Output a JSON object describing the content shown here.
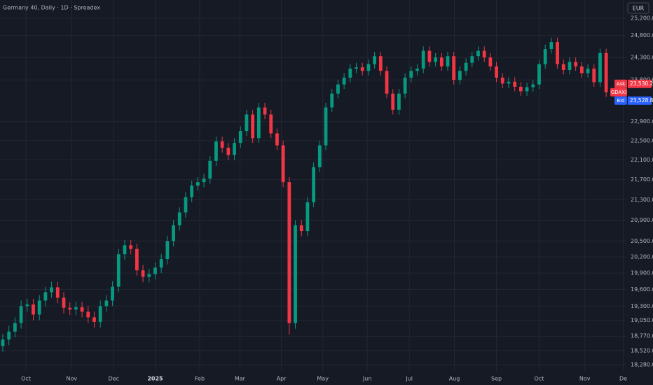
{
  "chart_data": {
    "type": "candlestick",
    "title": "Germany 40, Daily · 1D · Spreadex",
    "currency": "EUR",
    "log_scale": true,
    "grid": true,
    "up_color": "#089981",
    "down_color": "#f23645",
    "ylim": [
      18174,
      25629
    ],
    "yticks": [
      {
        "value": 25200,
        "label": "25,200.0"
      },
      {
        "value": 24800,
        "label": "24,800.0"
      },
      {
        "value": 24300,
        "label": "24,300.0"
      },
      {
        "value": 23800,
        "label": "23,800.0"
      },
      {
        "value": 22900,
        "label": "22,900.0"
      },
      {
        "value": 22500,
        "label": "22,500.0"
      },
      {
        "value": 22100,
        "label": "22,100.0"
      },
      {
        "value": 21700,
        "label": "21,700.0"
      },
      {
        "value": 21300,
        "label": "21,300.0"
      },
      {
        "value": 20900,
        "label": "20,900.0"
      },
      {
        "value": 20500,
        "label": "20,500.0"
      },
      {
        "value": 20200,
        "label": "20,200.0"
      },
      {
        "value": 19900,
        "label": "19,900.0"
      },
      {
        "value": 19600,
        "label": "19,600.0"
      },
      {
        "value": 19300,
        "label": "19,300.0"
      },
      {
        "value": 19050,
        "label": "19,050.0"
      },
      {
        "value": 18770,
        "label": "18,770.0"
      },
      {
        "value": 18520,
        "label": "18,520.0"
      },
      {
        "value": 18280,
        "label": "18,280.0"
      }
    ],
    "xlim": [
      -0.46,
      102.2
    ],
    "xticks": [
      {
        "value": 3.8,
        "label": "Oct"
      },
      {
        "value": 11.3,
        "label": "Nov"
      },
      {
        "value": 18.2,
        "label": "Dec"
      },
      {
        "value": 25,
        "label": "2025"
      },
      {
        "value": 32.3,
        "label": "Feb"
      },
      {
        "value": 38.9,
        "label": "Mar"
      },
      {
        "value": 45.7,
        "label": "Apr"
      },
      {
        "value": 52.5,
        "label": "May"
      },
      {
        "value": 59.8,
        "label": "Jun"
      },
      {
        "value": 66.7,
        "label": "Jul"
      },
      {
        "value": 74.1,
        "label": "Aug"
      },
      {
        "value": 81,
        "label": "Sep"
      },
      {
        "value": 88,
        "label": "Oct"
      },
      {
        "value": 95.5,
        "label": "Nov"
      },
      {
        "value": 101.8,
        "label": "De"
      }
    ],
    "open": [
      18600,
      18712,
      18850,
      19000,
      19300,
      19330,
      19150,
      19400,
      19550,
      19640,
      19450,
      19270,
      19240,
      19280,
      19200,
      19100,
      19020,
      19300,
      19400,
      19650,
      20250,
      20420,
      20350,
      19950,
      19830,
      19880,
      20000,
      20160,
      20500,
      20800,
      21050,
      21350,
      21580,
      21650,
      21720,
      22080,
      22480,
      22350,
      22200,
      22450,
      22700,
      23050,
      22550,
      23200,
      23050,
      22650,
      22400,
      21650,
      19000,
      20800,
      20690,
      21250,
      21950,
      22400,
      23200,
      23500,
      23700,
      23850,
      24050,
      24080,
      24000,
      24150,
      24330,
      24000,
      23500,
      23150,
      23500,
      23850,
      24000,
      24050,
      24450,
      24200,
      24300,
      24100,
      24330,
      23800,
      24000,
      24180,
      24330,
      24450,
      24300,
      24100,
      23850,
      23720,
      23760,
      23650,
      23550,
      23640,
      23700,
      24150,
      24490,
      24650,
      24150,
      24020,
      24200,
      24100,
      23950,
      24050,
      23750,
      24400
    ],
    "high": [
      18812,
      18950,
      19100,
      19400,
      19430,
      19430,
      19500,
      19650,
      19740,
      19740,
      19550,
      19370,
      19380,
      19380,
      19300,
      19200,
      19400,
      19500,
      19750,
      20350,
      20520,
      20520,
      20450,
      20050,
      19980,
      20100,
      20260,
      20600,
      20900,
      21150,
      21450,
      21680,
      21750,
      21820,
      22180,
      22580,
      22580,
      22450,
      22550,
      22800,
      23150,
      23150,
      23300,
      23300,
      23150,
      22750,
      22500,
      21750,
      20900,
      20900,
      21350,
      22050,
      22500,
      23300,
      23600,
      23800,
      23950,
      24150,
      24180,
      24180,
      24250,
      24430,
      24430,
      24100,
      23600,
      23600,
      23950,
      24100,
      24150,
      24550,
      24550,
      24400,
      24400,
      24430,
      24430,
      24100,
      24280,
      24430,
      24550,
      24550,
      24400,
      24200,
      23950,
      23860,
      23860,
      23750,
      23740,
      23800,
      24250,
      24590,
      24750,
      24750,
      24250,
      24300,
      24300,
      24200,
      24150,
      24150,
      24500,
      24500
    ],
    "low": [
      18500,
      18612,
      18750,
      18900,
      19200,
      19050,
      19050,
      19300,
      19450,
      19350,
      19170,
      19140,
      19140,
      19100,
      19000,
      18920,
      18920,
      19200,
      19300,
      19550,
      20150,
      20250,
      19850,
      19730,
      19730,
      19780,
      19900,
      20060,
      20400,
      20700,
      20950,
      21250,
      21480,
      21550,
      21620,
      21980,
      22250,
      22100,
      22100,
      22350,
      22600,
      22450,
      22450,
      22950,
      22550,
      22300,
      21550,
      18798,
      18900,
      20590,
      20590,
      21150,
      21850,
      22300,
      23100,
      23400,
      23600,
      23750,
      23950,
      23900,
      23900,
      24050,
      23900,
      23400,
      23050,
      23050,
      23400,
      23750,
      23900,
      23950,
      24100,
      24100,
      24000,
      24000,
      23700,
      23700,
      23900,
      24080,
      24230,
      24200,
      24000,
      23750,
      23620,
      23620,
      23550,
      23450,
      23450,
      23540,
      23600,
      24050,
      24390,
      24050,
      23920,
      23920,
      24000,
      23850,
      23850,
      23650,
      23650,
      23429
    ],
    "close": [
      18712,
      18850,
      19000,
      19300,
      19330,
      19150,
      19400,
      19550,
      19640,
      19450,
      19270,
      19240,
      19280,
      19200,
      19100,
      19020,
      19300,
      19400,
      19650,
      20250,
      20420,
      20350,
      19950,
      19830,
      19880,
      20000,
      20160,
      20500,
      20800,
      21050,
      21350,
      21580,
      21650,
      21720,
      22080,
      22480,
      22350,
      22200,
      22450,
      22700,
      23050,
      22550,
      23200,
      23050,
      22650,
      22400,
      21650,
      19000,
      20800,
      20690,
      21250,
      21950,
      22400,
      23200,
      23500,
      23700,
      23850,
      24050,
      24080,
      24000,
      24150,
      24330,
      24000,
      23500,
      23150,
      23500,
      23850,
      24000,
      24050,
      24450,
      24200,
      24300,
      24100,
      24330,
      23800,
      24000,
      24180,
      24330,
      24450,
      24300,
      24100,
      23850,
      23720,
      23760,
      23650,
      23550,
      23640,
      23700,
      24150,
      24490,
      24650,
      24150,
      24020,
      24200,
      24100,
      23950,
      24050,
      23750,
      24400,
      23529
    ],
    "symbol_label": "GDAXI",
    "price_labels": [
      {
        "label": "Ask",
        "value": {
          "value": 23530.2,
          "label": "23,530.2"
        },
        "color": "#f23645"
      },
      {
        "label": "Bid",
        "value": {
          "value": 23528.8,
          "label": "23,528.8"
        },
        "color": "#2962ff"
      }
    ]
  }
}
